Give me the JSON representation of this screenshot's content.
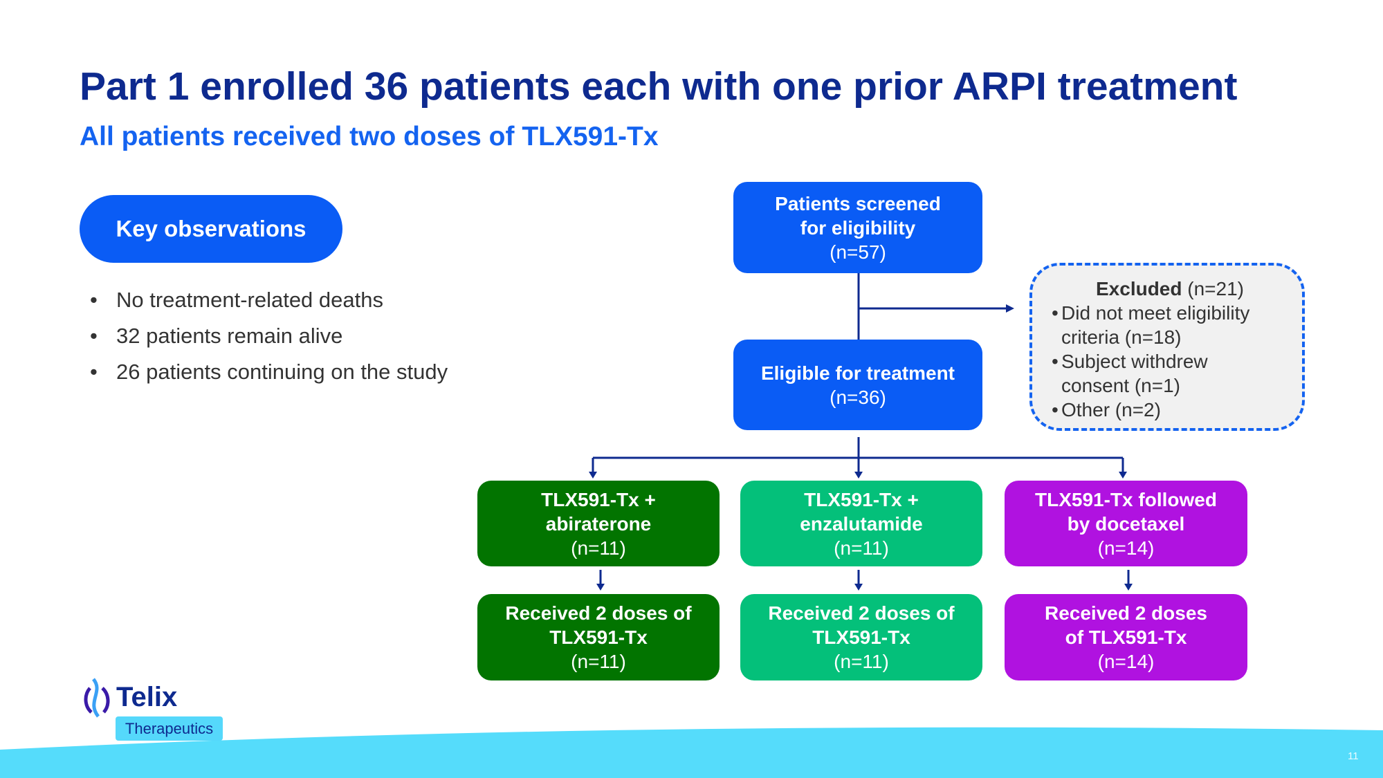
{
  "title": "Part 1 enrolled 36 patients each with one prior ARPI treatment",
  "subtitle": "All patients received two doses of TLX591-Tx",
  "key_observations": {
    "label": "Key observations",
    "bullets": [
      "No treatment-related deaths",
      "32 patients remain alive",
      "26 patients continuing on the study"
    ]
  },
  "flow": {
    "screened": {
      "line1": "Patients screened",
      "line2": "for eligibility",
      "n": "(n=57)"
    },
    "eligible": {
      "line1": "Eligible for treatment",
      "n": "(n=36)"
    },
    "excluded": {
      "label": "Excluded",
      "n": "(n=21)",
      "items": [
        {
          "l1": "Did not meet eligibility",
          "l2": "criteria (n=18)"
        },
        {
          "l1": "Subject withdrew",
          "l2": "consent (n=1)"
        },
        {
          "l1": "Other (n=2)",
          "l2": ""
        }
      ]
    },
    "arms": [
      {
        "l1": "TLX591-Tx +",
        "l2": "abiraterone",
        "n": "(n=11)",
        "r1": "Received 2 doses of",
        "r2": "TLX591-Tx",
        "rn": "(n=11)"
      },
      {
        "l1": "TLX591-Tx +",
        "l2": "enzalutamide",
        "n": "(n=11)",
        "r1": "Received 2 doses of",
        "r2": "TLX591-Tx",
        "rn": "(n=11)"
      },
      {
        "l1": "TLX591-Tx followed",
        "l2": "by docetaxel",
        "n": "(n=14)",
        "r1": "Received 2 doses",
        "r2": "of TLX591-Tx",
        "rn": "(n=14)"
      }
    ]
  },
  "logo": {
    "name": "Telix",
    "sub": "Therapeutics"
  },
  "page_number": "11",
  "colors": {
    "title": "#0e2a8f",
    "accent": "#0a5cf5",
    "abiraterone": "#027400",
    "enzalutamide": "#04c07a",
    "docetaxel": "#b012e0",
    "wave": "#55dcfb"
  }
}
